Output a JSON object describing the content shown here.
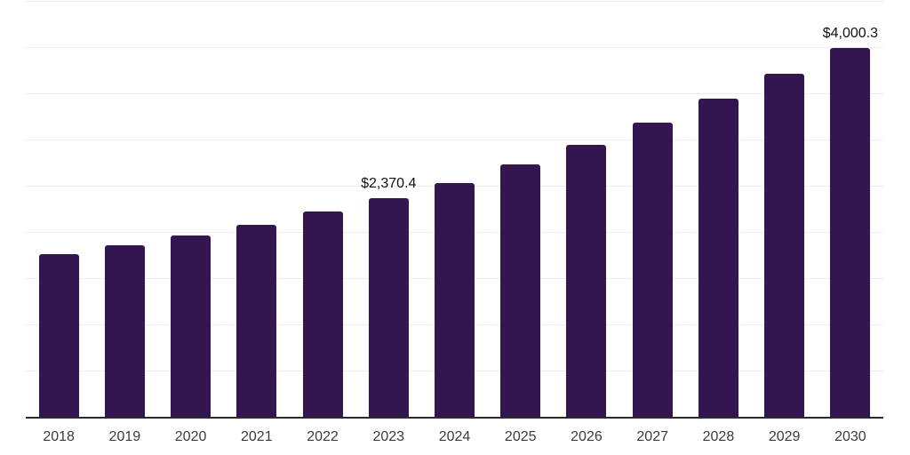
{
  "chart_data": {
    "type": "bar",
    "title": "",
    "xlabel": "",
    "ylabel": "",
    "categories": [
      "2018",
      "2019",
      "2020",
      "2021",
      "2022",
      "2023",
      "2024",
      "2025",
      "2026",
      "2027",
      "2028",
      "2029",
      "2030"
    ],
    "values": [
      1765,
      1860,
      1970,
      2080,
      2225,
      2370.4,
      2540,
      2740,
      2955,
      3190,
      3450,
      3725,
      4000.3
    ],
    "data_labels": [
      "",
      "",
      "",
      "",
      "",
      "$2,370.4",
      "",
      "",
      "",
      "",
      "",
      "",
      "$4,000.3"
    ],
    "ylim": [
      0,
      4500
    ],
    "gridline_step": 500,
    "grid": true,
    "legend": "none",
    "colors": {
      "bar": "#331550",
      "grid": "#ededed",
      "axis": "#2b2b2b",
      "tick_label": "#3b3b3b",
      "data_label": "#111111",
      "background": "#ffffff"
    }
  }
}
